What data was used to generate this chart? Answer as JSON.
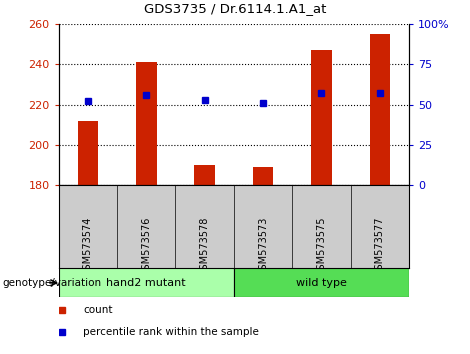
{
  "title": "GDS3735 / Dr.6114.1.A1_at",
  "samples": [
    "GSM573574",
    "GSM573576",
    "GSM573578",
    "GSM573573",
    "GSM573575",
    "GSM573577"
  ],
  "count_values": [
    212,
    241,
    190,
    189,
    247,
    255
  ],
  "percentile_values": [
    52,
    56,
    53,
    51,
    57,
    57
  ],
  "group_split": 3,
  "group_labels": [
    "hand2 mutant",
    "wild type"
  ],
  "group_color_mutant": "#AAFFAA",
  "group_color_wild": "#55DD55",
  "ylim_left": [
    180,
    260
  ],
  "ylim_right": [
    0,
    100
  ],
  "yticks_left": [
    180,
    200,
    220,
    240,
    260
  ],
  "yticks_right": [
    0,
    25,
    50,
    75,
    100
  ],
  "bar_color": "#CC2200",
  "dot_color": "#0000CC",
  "bar_bottom": 180,
  "sample_bg": "#CCCCCC",
  "genotype_label": "genotype/variation"
}
